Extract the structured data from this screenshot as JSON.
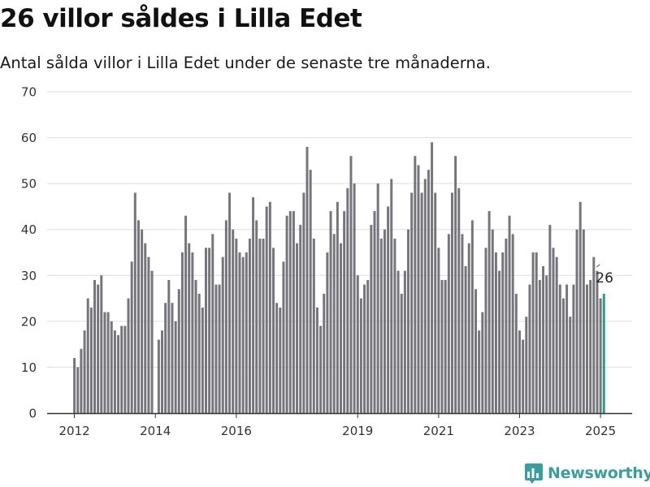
{
  "title": "26 villor såldes i Lilla Edet",
  "subtitle": "Antal sålda villor i Lilla Edet under de senaste tre månaderna.",
  "brand": {
    "name": "Newsworthy",
    "icon": "bar-chart-logo-icon"
  },
  "colors": {
    "bar": "#76757b",
    "highlight": "#2a9d8f",
    "grid": "#dddddd",
    "axis": "#333333",
    "brand": "#3a9e9e"
  },
  "chart_data": {
    "type": "bar",
    "x_start": "2012-01",
    "x_ticks": [
      "2012",
      "2014",
      "2016",
      "2019",
      "2021",
      "2023",
      "2025"
    ],
    "ylim": [
      0,
      70
    ],
    "y_ticks": [
      "0",
      "10",
      "20",
      "30",
      "40",
      "50",
      "60",
      "70"
    ],
    "annotation": {
      "label": "26"
    },
    "values": [
      12,
      10,
      14,
      18,
      25,
      23,
      29,
      28,
      30,
      22,
      22,
      20,
      18,
      17,
      19,
      19,
      25,
      33,
      48,
      42,
      40,
      37,
      34,
      31,
      null,
      16,
      18,
      24,
      29,
      24,
      20,
      27,
      35,
      43,
      37,
      35,
      29,
      26,
      23,
      36,
      36,
      39,
      28,
      28,
      34,
      42,
      48,
      40,
      38,
      35,
      34,
      35,
      38,
      47,
      42,
      38,
      38,
      45,
      46,
      36,
      24,
      23,
      33,
      43,
      44,
      44,
      37,
      41,
      48,
      58,
      53,
      38,
      23,
      19,
      26,
      35,
      44,
      39,
      46,
      37,
      44,
      49,
      56,
      50,
      30,
      25,
      28,
      29,
      41,
      44,
      50,
      38,
      40,
      45,
      51,
      38,
      31,
      26,
      31,
      40,
      48,
      56,
      54,
      48,
      51,
      53,
      59,
      48,
      36,
      29,
      29,
      39,
      48,
      56,
      49,
      39,
      32,
      37,
      42,
      27,
      18,
      22,
      36,
      44,
      40,
      35,
      31,
      35,
      38,
      43,
      39,
      26,
      18,
      16,
      21,
      28,
      35,
      35,
      29,
      32,
      30,
      41,
      36,
      34,
      28,
      25,
      28,
      21,
      28,
      40,
      46,
      40,
      28,
      29,
      34,
      31,
      25,
      26
    ]
  }
}
